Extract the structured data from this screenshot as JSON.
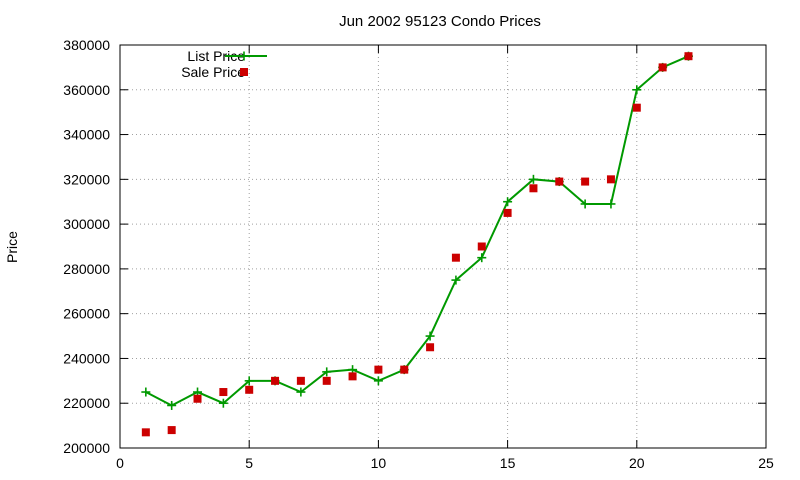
{
  "chart_data": {
    "type": "line",
    "title": "Jun 2002 95123 Condo Prices",
    "xlabel": "",
    "ylabel": "Price",
    "xlim": [
      0,
      25
    ],
    "ylim": [
      200000,
      380000
    ],
    "xticks": [
      0,
      5,
      10,
      15,
      20,
      25
    ],
    "yticks": [
      200000,
      220000,
      240000,
      260000,
      280000,
      300000,
      320000,
      340000,
      360000,
      380000
    ],
    "grid": true,
    "legend_position": "top-left",
    "series": [
      {
        "name": "List Price",
        "style": "line-points",
        "color": "#009900",
        "points": [
          [
            1,
            225000
          ],
          [
            2,
            219000
          ],
          [
            3,
            225000
          ],
          [
            4,
            220000
          ],
          [
            5,
            230000
          ],
          [
            6,
            230000
          ],
          [
            7,
            225000
          ],
          [
            8,
            234000
          ],
          [
            9,
            235000
          ],
          [
            10,
            230000
          ],
          [
            11,
            235000
          ],
          [
            12,
            250000
          ],
          [
            13,
            275000
          ],
          [
            14,
            285000
          ],
          [
            15,
            310000
          ],
          [
            16,
            320000
          ],
          [
            17,
            319000
          ],
          [
            18,
            309000
          ],
          [
            19,
            309000
          ],
          [
            20,
            360000
          ],
          [
            21,
            370000
          ],
          [
            22,
            375000
          ]
        ]
      },
      {
        "name": "Sale Price",
        "style": "points",
        "color": "#cc0000",
        "points": [
          [
            1,
            207000
          ],
          [
            2,
            208000
          ],
          [
            3,
            222000
          ],
          [
            4,
            225000
          ],
          [
            5,
            226000
          ],
          [
            6,
            230000
          ],
          [
            7,
            230000
          ],
          [
            8,
            230000
          ],
          [
            9,
            232000
          ],
          [
            10,
            235000
          ],
          [
            11,
            235000
          ],
          [
            12,
            245000
          ],
          [
            13,
            285000
          ],
          [
            14,
            290000
          ],
          [
            15,
            305000
          ],
          [
            16,
            316000
          ],
          [
            17,
            319000
          ],
          [
            18,
            319000
          ],
          [
            19,
            320000
          ],
          [
            20,
            352000
          ],
          [
            21,
            370000
          ],
          [
            22,
            375000
          ]
        ]
      }
    ]
  }
}
